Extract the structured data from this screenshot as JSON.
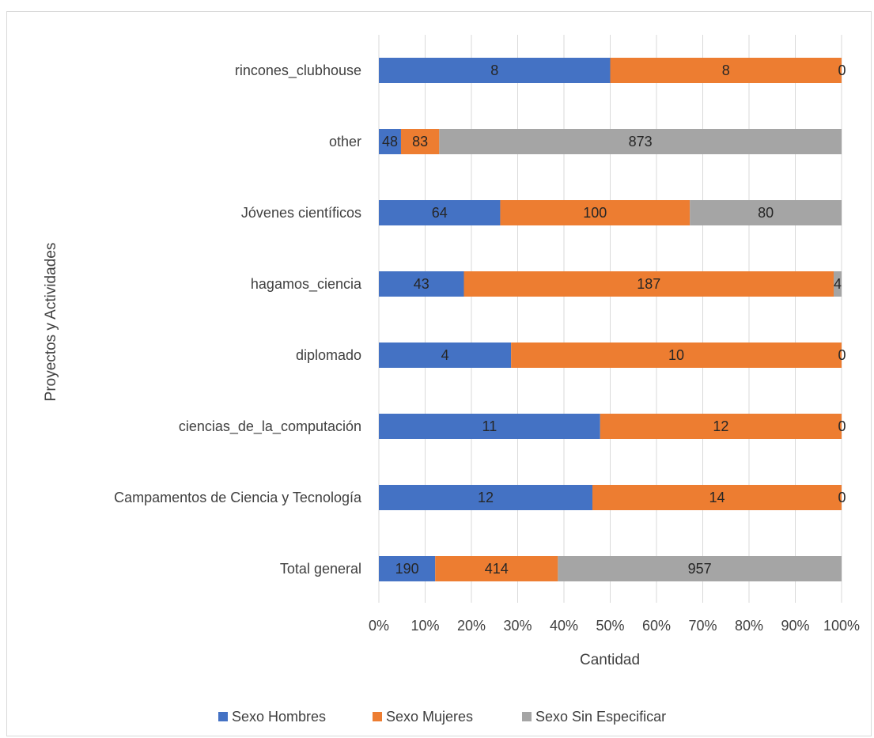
{
  "chart_data": {
    "type": "bar",
    "orientation": "horizontal",
    "stacked": "percent",
    "categories": [
      "rincones_clubhouse",
      "other",
      "Jóvenes científicos",
      "hagamos_ciencia",
      "diplomado",
      "ciencias_de_la_computación",
      "Campamentos de Ciencia y Tecnología",
      "Total general"
    ],
    "series": [
      {
        "name": "Sexo Hombres",
        "color": "#4472C4",
        "values": [
          8,
          48,
          64,
          43,
          4,
          11,
          12,
          190
        ]
      },
      {
        "name": "Sexo Mujeres",
        "color": "#ED7D31",
        "values": [
          8,
          83,
          100,
          187,
          10,
          12,
          14,
          414
        ]
      },
      {
        "name": "Sexo Sin Especificar",
        "color": "#A5A5A5",
        "values": [
          0,
          873,
          80,
          4,
          0,
          0,
          0,
          957
        ]
      }
    ],
    "xlabel": "Cantidad",
    "ylabel": "Proyectos y Actividades",
    "xticks": [
      "0%",
      "10%",
      "20%",
      "30%",
      "40%",
      "50%",
      "60%",
      "70%",
      "80%",
      "90%",
      "100%"
    ],
    "xlim": [
      0,
      100
    ],
    "grid": true,
    "legend_position": "bottom"
  }
}
